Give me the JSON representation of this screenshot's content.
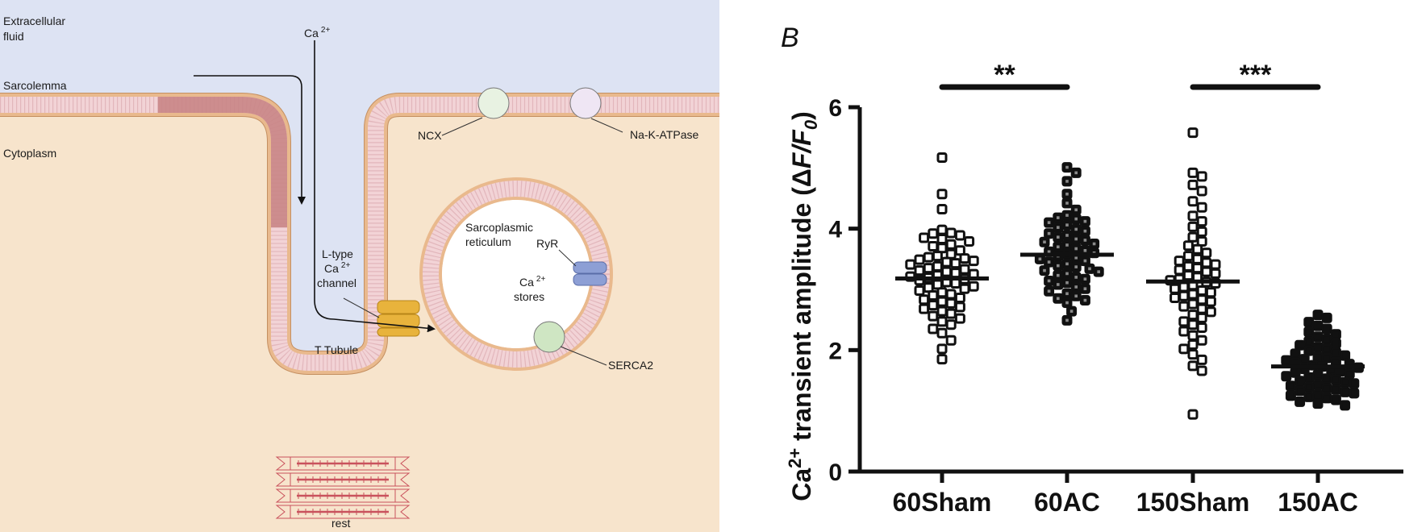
{
  "diagram": {
    "labels": {
      "extracellular_1": "Extracellular",
      "extracellular_2": "fluid",
      "ca_top": "Ca",
      "ca_top_sup": "2+",
      "sarcolemma": "Sarcolemma",
      "cytoplasm": "Cytoplasm",
      "ncx": "NCX",
      "na_k_atpase": "Na-K-ATPase",
      "sr_1": "Sarcoplasmic",
      "sr_2": "reticulum",
      "ryr": "RyR",
      "ca_stores_1": "Ca",
      "ca_stores_sup": "2+",
      "ca_stores_2": "stores",
      "ltype_1": "L-type",
      "ltype_2": "Ca",
      "ltype_sup": "2+",
      "ltype_3": "channel",
      "t_tubule": "T Tubule",
      "serca2": "SERCA2",
      "rest": "rest"
    },
    "colors": {
      "extracellular": "#dde3f3",
      "cytoplasm": "#f7e4cc",
      "membrane_head": "#e9b98d",
      "membrane_tail": "#f2d3d6",
      "sarcolemma_highlight": "#c98586",
      "ncx": "#e8f2e2",
      "na_k": "#efe6f4",
      "ryr": "#8d9fd5",
      "serca": "#cfe6c3",
      "ltype": "#e8b33c",
      "sarcomere": "#c9525d"
    }
  },
  "chart": {
    "panel_letter": "B",
    "axis_title_prefix": "Ca",
    "axis_title_sup": "2+",
    "axis_title_mid": " transient amplitude (",
    "axis_title_delta": "Δ",
    "axis_title_F": "F/F",
    "axis_title_sub": "0",
    "axis_title_close": ")",
    "significance": [
      {
        "label": "**",
        "from": "60Sham",
        "to": "60AC"
      },
      {
        "label": "***",
        "from": "150Sham",
        "to": "150AC"
      }
    ]
  },
  "chart_data": {
    "type": "scatter",
    "categories": [
      "60Sham",
      "60AC",
      "150Sham",
      "150AC"
    ],
    "yticks": [
      0,
      2,
      4,
      6
    ],
    "ylim": [
      0,
      6
    ],
    "ylabel": "Ca2+ transient amplitude (ΔF/F0)",
    "means": [
      3.18,
      3.57,
      3.13,
      1.73
    ],
    "series": [
      {
        "category": "60Sham",
        "marker": "open-square",
        "values": [
          5.17,
          4.57,
          4.32,
          3.98,
          3.93,
          3.92,
          3.89,
          3.85,
          3.83,
          3.79,
          3.74,
          3.71,
          3.68,
          3.64,
          3.58,
          3.55,
          3.53,
          3.51,
          3.49,
          3.47,
          3.45,
          3.43,
          3.41,
          3.38,
          3.35,
          3.33,
          3.31,
          3.29,
          3.27,
          3.25,
          3.23,
          3.21,
          3.19,
          3.17,
          3.15,
          3.12,
          3.1,
          3.08,
          3.05,
          3.03,
          3.01,
          2.98,
          2.95,
          2.92,
          2.9,
          2.86,
          2.83,
          2.8,
          2.77,
          2.74,
          2.71,
          2.68,
          2.64,
          2.6,
          2.56,
          2.52,
          2.47,
          2.42,
          2.35,
          2.28,
          2.16,
          2.02,
          1.85
        ]
      },
      {
        "category": "60AC",
        "marker": "filled-gray-square",
        "values": [
          5.01,
          4.92,
          4.78,
          4.57,
          4.42,
          4.31,
          4.22,
          4.18,
          4.16,
          4.12,
          4.1,
          4.06,
          4.02,
          3.99,
          3.96,
          3.92,
          3.89,
          3.86,
          3.83,
          3.81,
          3.78,
          3.75,
          3.73,
          3.7,
          3.67,
          3.64,
          3.62,
          3.6,
          3.58,
          3.55,
          3.52,
          3.5,
          3.47,
          3.45,
          3.42,
          3.39,
          3.37,
          3.34,
          3.31,
          3.29,
          3.26,
          3.23,
          3.2,
          3.17,
          3.14,
          3.11,
          3.08,
          3.04,
          3.01,
          2.97,
          2.93,
          2.89,
          2.85,
          2.82,
          2.78,
          2.64,
          2.49
        ]
      },
      {
        "category": "150Sham",
        "marker": "open-square",
        "values": [
          5.58,
          4.92,
          4.86,
          4.72,
          4.62,
          4.45,
          4.35,
          4.21,
          4.12,
          4.03,
          3.95,
          3.86,
          3.79,
          3.72,
          3.66,
          3.6,
          3.55,
          3.5,
          3.47,
          3.44,
          3.41,
          3.38,
          3.35,
          3.32,
          3.29,
          3.26,
          3.23,
          3.2,
          3.17,
          3.15,
          3.12,
          3.1,
          3.07,
          3.04,
          3.01,
          2.98,
          2.95,
          2.92,
          2.89,
          2.86,
          2.83,
          2.8,
          2.76,
          2.72,
          2.68,
          2.63,
          2.58,
          2.53,
          2.47,
          2.42,
          2.37,
          2.31,
          2.24,
          2.16,
          2.09,
          2.02,
          1.93,
          1.84,
          1.74,
          1.66,
          0.94
        ]
      },
      {
        "category": "150AC",
        "marker": "filled-black-square",
        "values": [
          2.58,
          2.53,
          2.46,
          2.4,
          2.35,
          2.3,
          2.26,
          2.22,
          2.18,
          2.14,
          2.11,
          2.08,
          2.05,
          2.02,
          1.99,
          1.96,
          1.94,
          1.91,
          1.89,
          1.87,
          1.85,
          1.83,
          1.81,
          1.79,
          1.77,
          1.75,
          1.73,
          1.71,
          1.69,
          1.67,
          1.65,
          1.63,
          1.61,
          1.59,
          1.57,
          1.55,
          1.53,
          1.51,
          1.49,
          1.47,
          1.45,
          1.43,
          1.41,
          1.39,
          1.37,
          1.35,
          1.33,
          1.31,
          1.29,
          1.27,
          1.25,
          1.23,
          1.21,
          1.18,
          1.15,
          1.12,
          1.09
        ]
      }
    ]
  }
}
